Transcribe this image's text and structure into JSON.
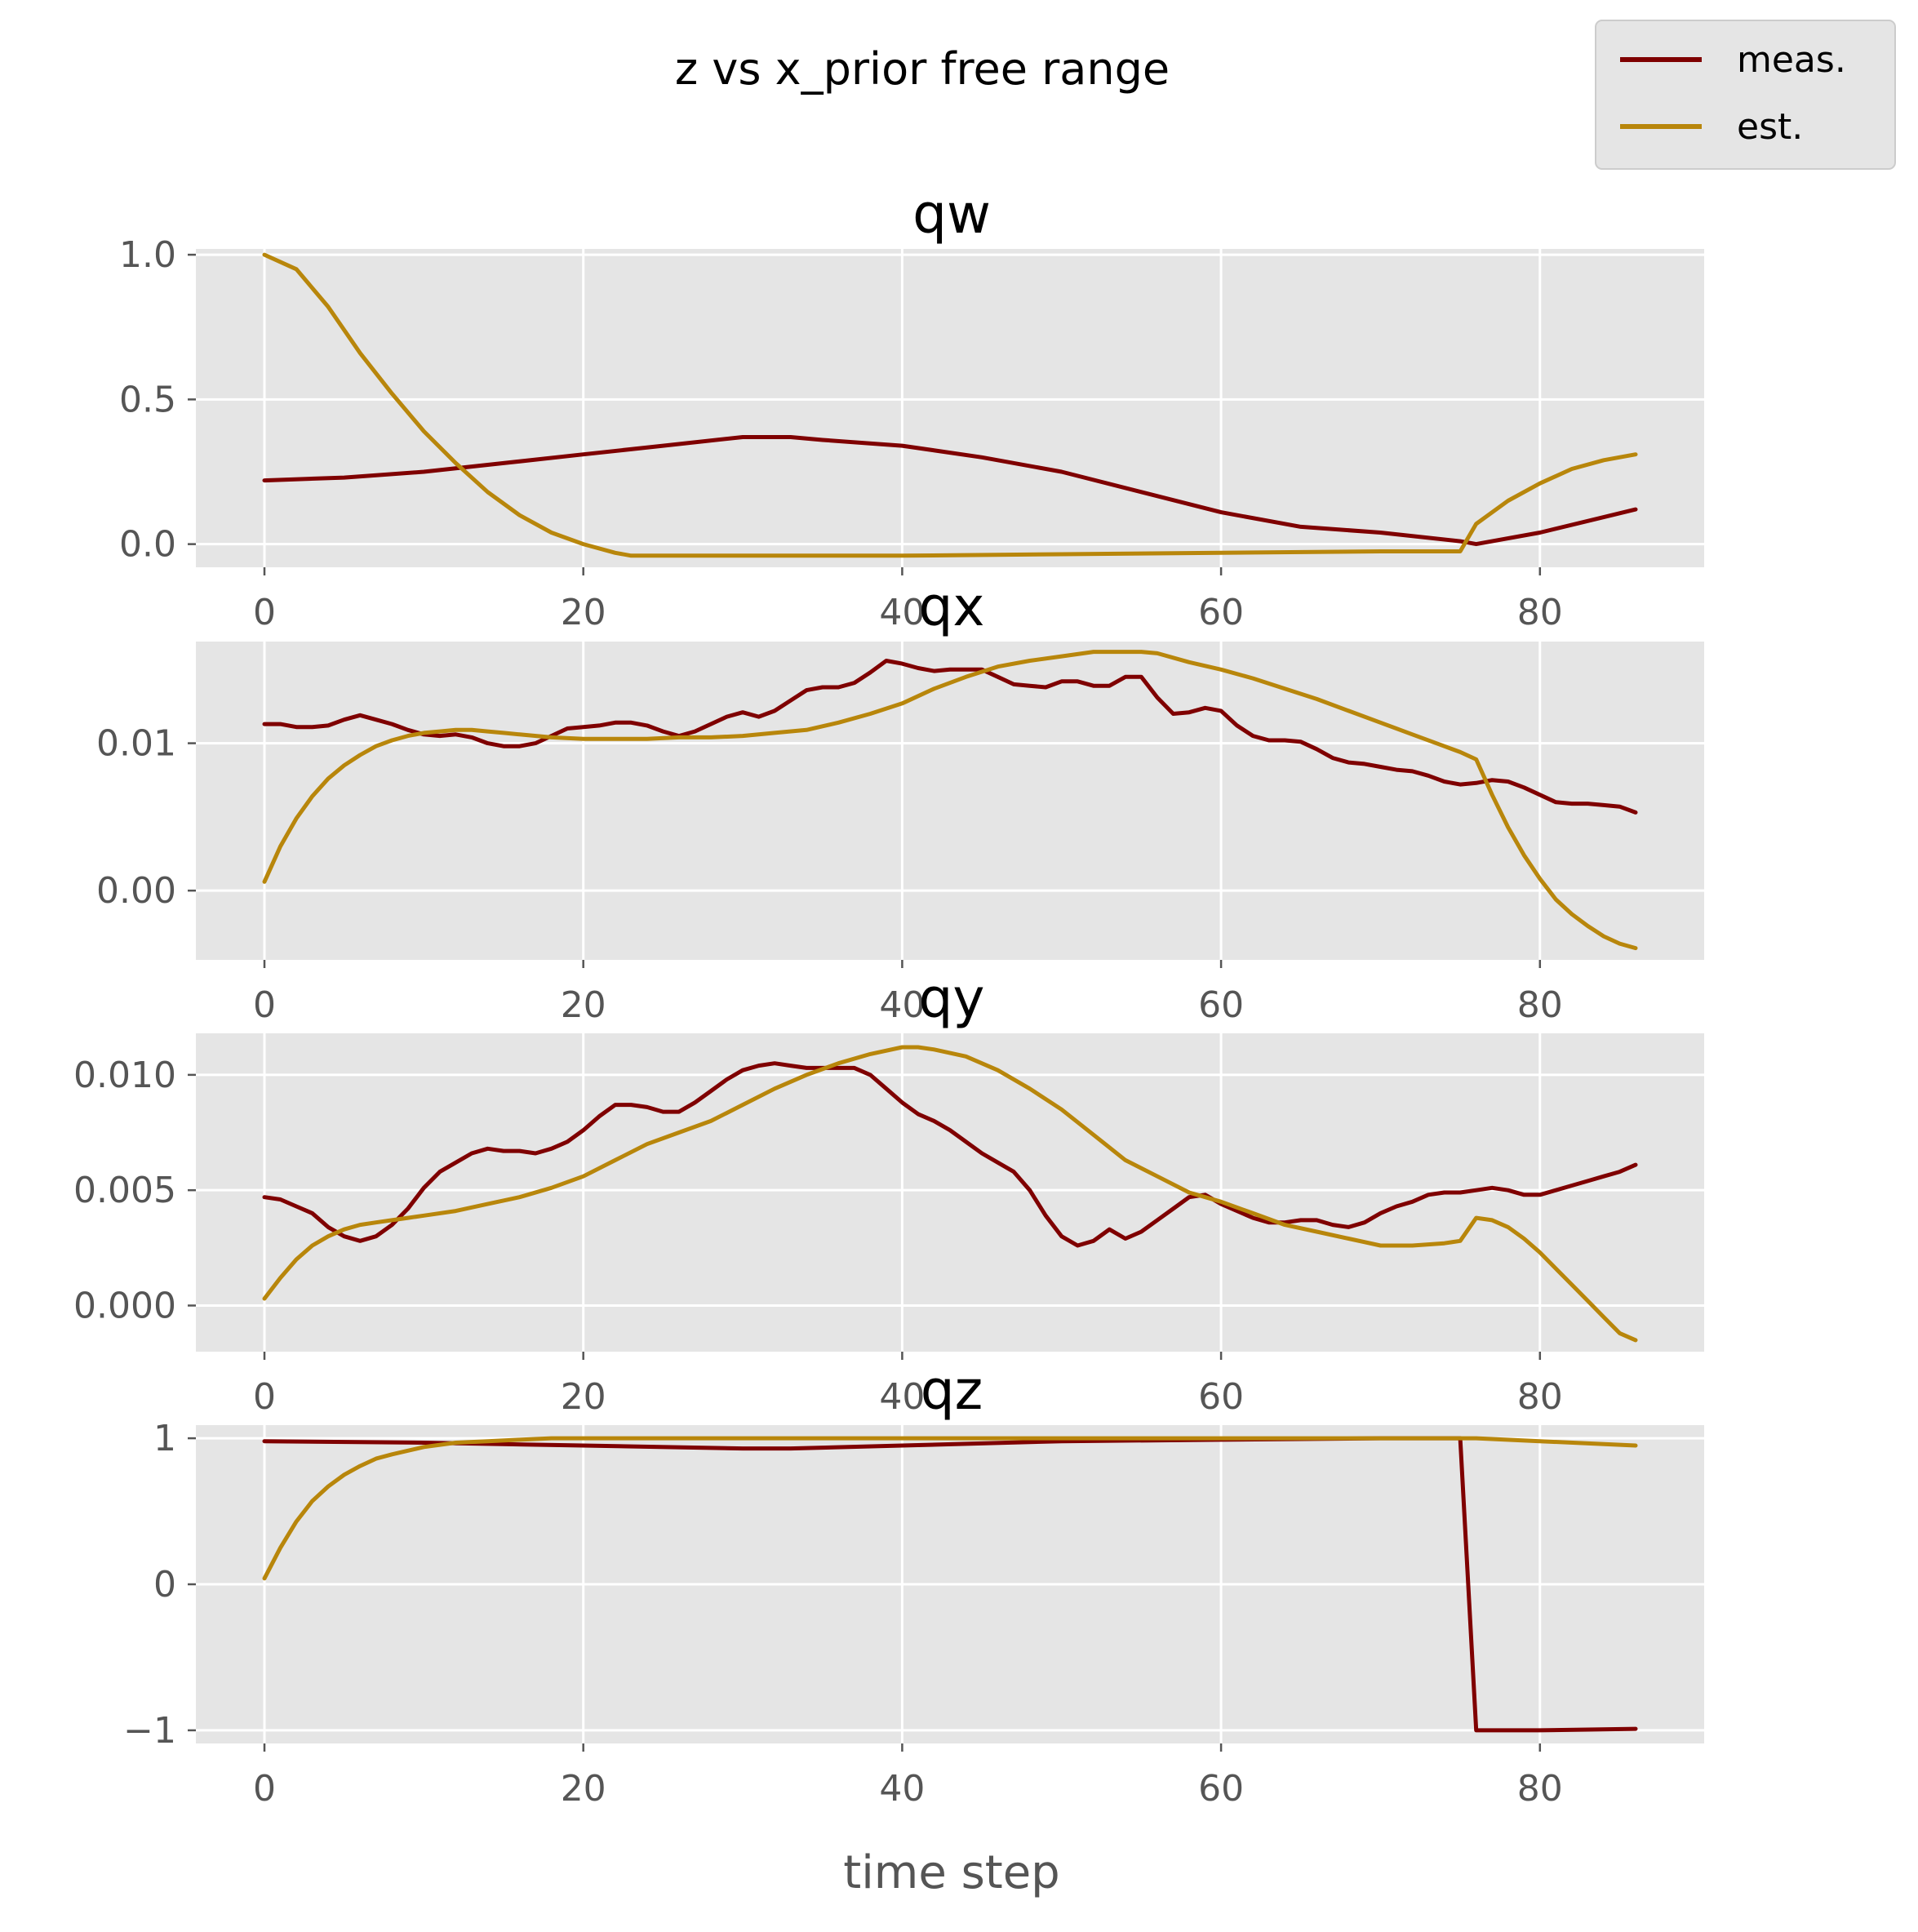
{
  "figure": {
    "suptitle": "z vs x_prior free range",
    "xlabel": "time step"
  },
  "legend": {
    "placement": "top-right",
    "entries": [
      {
        "label": "meas.",
        "color": "#7f0000"
      },
      {
        "label": "est.",
        "color": "#b8860b"
      }
    ]
  },
  "chart_data": [
    {
      "type": "line",
      "title": "qw",
      "xlim": [
        -4.3,
        90.3
      ],
      "ylim": [
        -0.08,
        1.02
      ],
      "xticks": [
        0,
        20,
        40,
        60,
        80
      ],
      "xtick_labels": [
        "0",
        "20",
        "40",
        "60",
        "80"
      ],
      "yticks": [
        0,
        0.5,
        1.0
      ],
      "ytick_labels": [
        "0.0",
        "0.5",
        "1.0"
      ],
      "grid": true,
      "series": [
        {
          "name": "meas.",
          "color": "#7f0000",
          "x": [
            0,
            5,
            10,
            15,
            20,
            25,
            30,
            33,
            35,
            40,
            45,
            50,
            55,
            60,
            65,
            70,
            75,
            76,
            80,
            86
          ],
          "y": [
            0.22,
            0.23,
            0.25,
            0.28,
            0.31,
            0.34,
            0.37,
            0.37,
            0.36,
            0.34,
            0.3,
            0.25,
            0.18,
            0.11,
            0.06,
            0.04,
            0.01,
            0.0,
            0.04,
            0.12
          ]
        },
        {
          "name": "est.",
          "color": "#b8860b",
          "x": [
            0,
            2,
            4,
            6,
            8,
            10,
            12,
            14,
            16,
            18,
            20,
            22,
            23,
            30,
            40,
            50,
            60,
            70,
            75,
            76,
            78,
            80,
            82,
            84,
            86
          ],
          "y": [
            1.0,
            0.95,
            0.82,
            0.66,
            0.52,
            0.39,
            0.28,
            0.18,
            0.1,
            0.04,
            0.0,
            -0.03,
            -0.04,
            -0.04,
            -0.04,
            -0.035,
            -0.03,
            -0.025,
            -0.025,
            0.07,
            0.15,
            0.21,
            0.26,
            0.29,
            0.31
          ]
        }
      ]
    },
    {
      "type": "line",
      "title": "qx",
      "xlim": [
        -4.3,
        90.3
      ],
      "ylim": [
        -0.0047,
        0.0169
      ],
      "xticks": [
        0,
        20,
        40,
        60,
        80
      ],
      "xtick_labels": [
        "0",
        "20",
        "40",
        "60",
        "80"
      ],
      "yticks": [
        0,
        0.01
      ],
      "ytick_labels": [
        "0.00",
        "0.01"
      ],
      "grid": true,
      "series": [
        {
          "name": "meas.",
          "color": "#7f0000",
          "x": [
            0,
            1,
            2,
            3,
            4,
            5,
            6,
            7,
            8,
            9,
            10,
            11,
            12,
            13,
            14,
            15,
            16,
            17,
            18,
            19,
            20,
            21,
            22,
            23,
            24,
            25,
            26,
            27,
            28,
            29,
            30,
            31,
            32,
            33,
            34,
            35,
            36,
            37,
            38,
            39,
            40,
            41,
            42,
            43,
            44,
            45,
            46,
            47,
            48,
            49,
            50,
            51,
            52,
            53,
            54,
            55,
            56,
            57,
            58,
            59,
            60,
            61,
            62,
            63,
            64,
            65,
            66,
            67,
            68,
            69,
            70,
            71,
            72,
            73,
            74,
            75,
            76,
            77,
            78,
            79,
            80,
            81,
            82,
            83,
            84,
            85,
            86
          ],
          "y": [
            0.0113,
            0.0113,
            0.0111,
            0.0111,
            0.0112,
            0.0116,
            0.0119,
            0.0116,
            0.0113,
            0.0109,
            0.0106,
            0.0105,
            0.0106,
            0.0104,
            0.01,
            0.0098,
            0.0098,
            0.01,
            0.0105,
            0.011,
            0.0111,
            0.0112,
            0.0114,
            0.0114,
            0.0112,
            0.0108,
            0.0105,
            0.0108,
            0.0113,
            0.0118,
            0.0121,
            0.0118,
            0.0122,
            0.0129,
            0.0136,
            0.0138,
            0.0138,
            0.0141,
            0.0148,
            0.0156,
            0.0154,
            0.0151,
            0.0149,
            0.015,
            0.015,
            0.015,
            0.0145,
            0.014,
            0.0139,
            0.0138,
            0.0142,
            0.0142,
            0.0139,
            0.0139,
            0.0145,
            0.0145,
            0.0131,
            0.012,
            0.0121,
            0.0124,
            0.0122,
            0.0112,
            0.0105,
            0.0102,
            0.0102,
            0.0101,
            0.0096,
            0.009,
            0.0087,
            0.0086,
            0.0084,
            0.0082,
            0.0081,
            0.0078,
            0.0074,
            0.0072,
            0.0073,
            0.0075,
            0.0074,
            0.007,
            0.0065,
            0.006,
            0.0059,
            0.0059,
            0.0058,
            0.0057,
            0.0053
          ]
        },
        {
          "name": "est.",
          "color": "#b8860b",
          "x": [
            0,
            1,
            2,
            3,
            4,
            5,
            6,
            7,
            8,
            9,
            10,
            11,
            12,
            13,
            14,
            15,
            16,
            18,
            20,
            22,
            24,
            26,
            28,
            30,
            32,
            34,
            36,
            38,
            40,
            42,
            44,
            46,
            48,
            50,
            52,
            54,
            55,
            56,
            58,
            60,
            62,
            64,
            66,
            68,
            70,
            72,
            74,
            75,
            76,
            77,
            78,
            79,
            80,
            81,
            82,
            83,
            84,
            85,
            86
          ],
          "y": [
            0.0006,
            0.003,
            0.0049,
            0.0064,
            0.0076,
            0.0085,
            0.0092,
            0.0098,
            0.0102,
            0.0105,
            0.0107,
            0.0108,
            0.0109,
            0.0109,
            0.0108,
            0.0107,
            0.0106,
            0.0104,
            0.0103,
            0.0103,
            0.0103,
            0.0104,
            0.0104,
            0.0105,
            0.0107,
            0.0109,
            0.0114,
            0.012,
            0.0127,
            0.0137,
            0.0145,
            0.0152,
            0.0156,
            0.0159,
            0.0162,
            0.0162,
            0.0162,
            0.0161,
            0.0155,
            0.015,
            0.0144,
            0.0137,
            0.013,
            0.0122,
            0.0114,
            0.0106,
            0.0098,
            0.0094,
            0.0089,
            0.0065,
            0.0043,
            0.0024,
            0.0008,
            -0.0006,
            -0.0016,
            -0.0024,
            -0.0031,
            -0.0036,
            -0.0039
          ]
        }
      ]
    },
    {
      "type": "line",
      "title": "qy",
      "xlim": [
        -4.3,
        90.3
      ],
      "ylim": [
        -0.002,
        0.0118
      ],
      "xticks": [
        0,
        20,
        40,
        60,
        80
      ],
      "xtick_labels": [
        "0",
        "20",
        "40",
        "60",
        "80"
      ],
      "yticks": [
        0,
        0.005,
        0.01
      ],
      "ytick_labels": [
        "0.000",
        "0.005",
        "0.010"
      ],
      "grid": true,
      "series": [
        {
          "name": "meas.",
          "color": "#7f0000",
          "x": [
            0,
            1,
            2,
            3,
            4,
            5,
            6,
            7,
            8,
            9,
            10,
            11,
            12,
            13,
            14,
            15,
            16,
            17,
            18,
            19,
            20,
            21,
            22,
            23,
            24,
            25,
            26,
            27,
            28,
            29,
            30,
            31,
            32,
            33,
            34,
            35,
            36,
            37,
            38,
            39,
            40,
            41,
            42,
            43,
            44,
            45,
            46,
            47,
            48,
            49,
            50,
            51,
            52,
            53,
            54,
            55,
            56,
            57,
            58,
            59,
            60,
            61,
            62,
            63,
            64,
            65,
            66,
            67,
            68,
            69,
            70,
            71,
            72,
            73,
            74,
            75,
            76,
            77,
            78,
            79,
            80,
            81,
            82,
            83,
            84,
            85,
            86
          ],
          "y": [
            0.0047,
            0.0046,
            0.0043,
            0.004,
            0.0034,
            0.003,
            0.0028,
            0.003,
            0.0035,
            0.0042,
            0.0051,
            0.0058,
            0.0062,
            0.0066,
            0.0068,
            0.0067,
            0.0067,
            0.0066,
            0.0068,
            0.0071,
            0.0076,
            0.0082,
            0.0087,
            0.0087,
            0.0086,
            0.0084,
            0.0084,
            0.0088,
            0.0093,
            0.0098,
            0.0102,
            0.0104,
            0.0105,
            0.0104,
            0.0103,
            0.0103,
            0.0103,
            0.0103,
            0.01,
            0.0094,
            0.0088,
            0.0083,
            0.008,
            0.0076,
            0.0071,
            0.0066,
            0.0062,
            0.0058,
            0.005,
            0.0039,
            0.003,
            0.0026,
            0.0028,
            0.0033,
            0.0029,
            0.0032,
            0.0037,
            0.0042,
            0.0047,
            0.0048,
            0.0044,
            0.0041,
            0.0038,
            0.0036,
            0.0036,
            0.0037,
            0.0037,
            0.0035,
            0.0034,
            0.0036,
            0.004,
            0.0043,
            0.0045,
            0.0048,
            0.0049,
            0.0049,
            0.005,
            0.0051,
            0.005,
            0.0048,
            0.0048,
            0.005,
            0.0052,
            0.0054,
            0.0056,
            0.0058,
            0.0061
          ]
        },
        {
          "name": "est.",
          "color": "#b8860b",
          "x": [
            0,
            1,
            2,
            3,
            4,
            5,
            6,
            7,
            8,
            9,
            10,
            12,
            14,
            16,
            18,
            20,
            22,
            24,
            26,
            28,
            30,
            32,
            34,
            36,
            38,
            40,
            41,
            42,
            44,
            46,
            48,
            50,
            52,
            54,
            56,
            58,
            60,
            62,
            64,
            66,
            68,
            70,
            72,
            74,
            75,
            76,
            77,
            78,
            79,
            80,
            81,
            82,
            83,
            84,
            85,
            86
          ],
          "y": [
            0.0003,
            0.0012,
            0.002,
            0.0026,
            0.003,
            0.0033,
            0.0035,
            0.0036,
            0.0037,
            0.0038,
            0.0039,
            0.0041,
            0.0044,
            0.0047,
            0.0051,
            0.0056,
            0.0063,
            0.007,
            0.0075,
            0.008,
            0.0087,
            0.0094,
            0.01,
            0.0105,
            0.0109,
            0.0112,
            0.0112,
            0.0111,
            0.0108,
            0.0102,
            0.0094,
            0.0085,
            0.0074,
            0.0063,
            0.0056,
            0.0049,
            0.0045,
            0.004,
            0.0035,
            0.0032,
            0.0029,
            0.0026,
            0.0026,
            0.0027,
            0.0028,
            0.0038,
            0.0037,
            0.0034,
            0.0029,
            0.0023,
            0.0016,
            0.0009,
            0.0002,
            -0.0005,
            -0.0012,
            -0.0015
          ]
        }
      ]
    },
    {
      "type": "line",
      "title": "qz",
      "xlim": [
        -4.3,
        90.3
      ],
      "ylim": [
        -1.09,
        1.09
      ],
      "xticks": [
        0,
        20,
        40,
        60,
        80
      ],
      "xtick_labels": [
        "0",
        "20",
        "40",
        "60",
        "80"
      ],
      "yticks": [
        -1,
        0,
        1
      ],
      "ytick_labels": [
        "−1",
        "0",
        "1"
      ],
      "grid": true,
      "series": [
        {
          "name": "meas.",
          "color": "#7f0000",
          "x": [
            0,
            10,
            20,
            30,
            33,
            40,
            50,
            60,
            70,
            75,
            76,
            80,
            86
          ],
          "y": [
            0.98,
            0.97,
            0.95,
            0.93,
            0.93,
            0.95,
            0.98,
            0.99,
            1.0,
            1.0,
            -1.0,
            -1.0,
            -0.99
          ]
        },
        {
          "name": "est.",
          "color": "#b8860b",
          "x": [
            0,
            1,
            2,
            3,
            4,
            5,
            6,
            7,
            8,
            10,
            12,
            14,
            16,
            18,
            20,
            30,
            40,
            50,
            60,
            70,
            75,
            76,
            80,
            86
          ],
          "y": [
            0.04,
            0.25,
            0.43,
            0.57,
            0.67,
            0.75,
            0.81,
            0.86,
            0.89,
            0.94,
            0.97,
            0.98,
            0.99,
            1.0,
            1.0,
            1.0,
            1.0,
            1.0,
            1.0,
            1.0,
            1.0,
            1.0,
            0.98,
            0.95
          ]
        }
      ]
    }
  ]
}
